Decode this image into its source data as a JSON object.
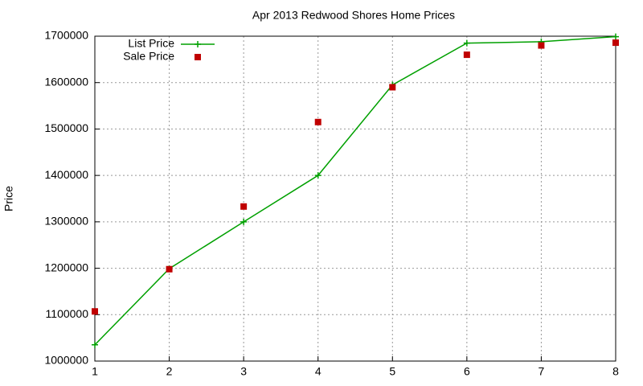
{
  "chart_data": {
    "type": "line",
    "title": "Apr 2013 Redwood Shores Home Prices",
    "ylabel": "Price",
    "x": [
      1,
      2,
      3,
      4,
      5,
      6,
      7,
      8
    ],
    "xlim": [
      1,
      8
    ],
    "xticks": [
      1,
      2,
      3,
      4,
      5,
      6,
      7,
      8
    ],
    "ylim": [
      1000000,
      1700000
    ],
    "yticks": [
      1000000,
      1100000,
      1200000,
      1300000,
      1400000,
      1500000,
      1600000,
      1700000
    ],
    "grid": true,
    "legend": "top-left",
    "series": [
      {
        "name": "List Price",
        "color": "#00a000",
        "mode": "linespoints",
        "values": [
          1035000,
          1199000,
          1300000,
          1400000,
          1595000,
          1685000,
          1688000,
          1699000
        ]
      },
      {
        "name": "Sale Price",
        "color": "#c00000",
        "mode": "points",
        "values": [
          1107000,
          1198000,
          1333000,
          1515000,
          1590000,
          1660000,
          1680000,
          1686000
        ]
      }
    ]
  }
}
